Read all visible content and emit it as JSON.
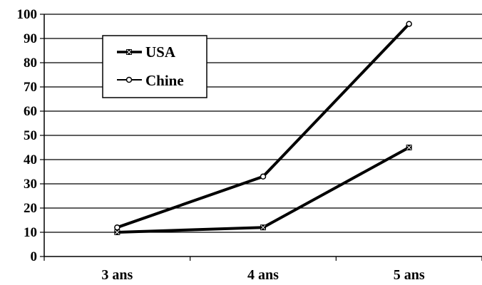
{
  "chart_data": {
    "type": "line",
    "categories": [
      "3 ans",
      "4 ans",
      "5 ans"
    ],
    "series": [
      {
        "name": "USA",
        "values": [
          10,
          12,
          45
        ],
        "marker": "x-square",
        "color": "#000000"
      },
      {
        "name": "Chine",
        "values": [
          12,
          33,
          96
        ],
        "marker": "open-circle",
        "color": "#000000"
      }
    ],
    "ylim": [
      0,
      100
    ],
    "yticks": [
      0,
      10,
      20,
      30,
      40,
      50,
      60,
      70,
      80,
      90,
      100
    ],
    "grid": true,
    "legend_position": "top-left",
    "title": "",
    "xlabel": "",
    "ylabel": ""
  }
}
